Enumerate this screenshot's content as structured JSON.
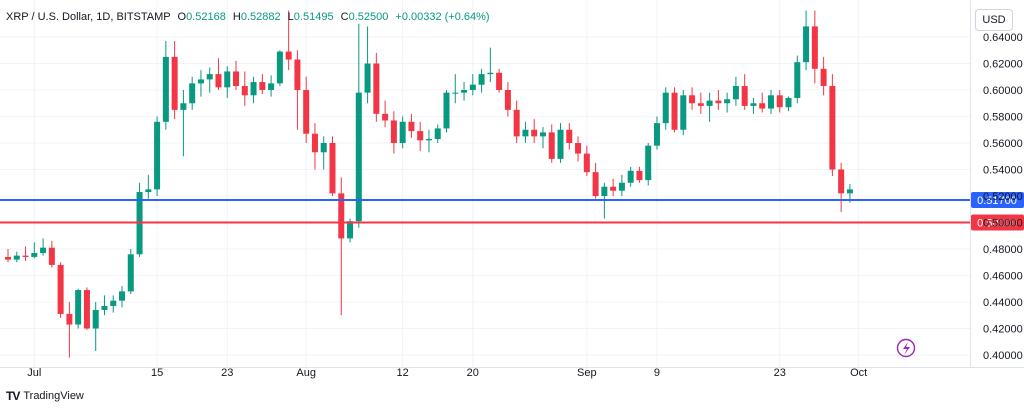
{
  "legend": {
    "symbol": "XRP / U.S. Dollar, 1D, BITSTAMP",
    "open_label": "O",
    "open": "0.52168",
    "high_label": "H",
    "high": "0.52882",
    "low_label": "L",
    "low": "0.51495",
    "close_label": "C",
    "close": "0.52500",
    "change": "+0.00332 (+0.64%)"
  },
  "currency_button": "USD",
  "footer": {
    "logo_text": "TV",
    "brand": "TradingView"
  },
  "colors": {
    "up": "#089981",
    "down": "#f23645",
    "blue_line": "#2962ff",
    "red_line": "#f23645",
    "grid": "#f0f3fa"
  },
  "chart_data": {
    "type": "candlestick",
    "x_ticks": [
      "Jul",
      "15",
      "23",
      "Aug",
      "12",
      "20",
      "Sep",
      "9",
      "23",
      "Oct"
    ],
    "y_ticks": [
      "0.40000",
      "0.42000",
      "0.44000",
      "0.46000",
      "0.48000",
      "0.50000",
      "0.52000",
      "0.54000",
      "0.56000",
      "0.58000",
      "0.60000",
      "0.62000",
      "0.64000"
    ],
    "ylim": [
      0.394,
      0.654
    ],
    "horizontal_lines": [
      {
        "value": 0.517,
        "label": "0.51700",
        "color": "#2962ff"
      },
      {
        "value": 0.5,
        "label": "0.50000",
        "color": "#f23645"
      }
    ],
    "candles": [
      {
        "date": "Jun 28",
        "o": 0.474,
        "h": 0.48,
        "l": 0.47,
        "c": 0.472
      },
      {
        "date": "Jun 29",
        "o": 0.472,
        "h": 0.478,
        "l": 0.47,
        "c": 0.475
      },
      {
        "date": "Jun 30",
        "o": 0.475,
        "h": 0.482,
        "l": 0.471,
        "c": 0.474
      },
      {
        "date": "Jul 1",
        "o": 0.474,
        "h": 0.485,
        "l": 0.473,
        "c": 0.477
      },
      {
        "date": "Jul 2",
        "o": 0.477,
        "h": 0.488,
        "l": 0.475,
        "c": 0.481
      },
      {
        "date": "Jul 3",
        "o": 0.481,
        "h": 0.486,
        "l": 0.466,
        "c": 0.468
      },
      {
        "date": "Jul 4",
        "o": 0.468,
        "h": 0.47,
        "l": 0.428,
        "c": 0.431
      },
      {
        "date": "Jul 5",
        "o": 0.431,
        "h": 0.44,
        "l": 0.398,
        "c": 0.423
      },
      {
        "date": "Jul 6",
        "o": 0.423,
        "h": 0.45,
        "l": 0.42,
        "c": 0.449
      },
      {
        "date": "Jul 7",
        "o": 0.449,
        "h": 0.451,
        "l": 0.419,
        "c": 0.42
      },
      {
        "date": "Jul 8",
        "o": 0.42,
        "h": 0.44,
        "l": 0.403,
        "c": 0.434
      },
      {
        "date": "Jul 9",
        "o": 0.434,
        "h": 0.445,
        "l": 0.43,
        "c": 0.437
      },
      {
        "date": "Jul 10",
        "o": 0.437,
        "h": 0.445,
        "l": 0.432,
        "c": 0.441
      },
      {
        "date": "Jul 11",
        "o": 0.441,
        "h": 0.452,
        "l": 0.436,
        "c": 0.448
      },
      {
        "date": "Jul 12",
        "o": 0.448,
        "h": 0.48,
        "l": 0.446,
        "c": 0.476
      },
      {
        "date": "Jul 13",
        "o": 0.476,
        "h": 0.53,
        "l": 0.474,
        "c": 0.523
      },
      {
        "date": "Jul 14",
        "o": 0.523,
        "h": 0.536,
        "l": 0.518,
        "c": 0.525
      },
      {
        "date": "Jul 15",
        "o": 0.525,
        "h": 0.58,
        "l": 0.52,
        "c": 0.576
      },
      {
        "date": "Jul 16",
        "o": 0.576,
        "h": 0.637,
        "l": 0.57,
        "c": 0.625
      },
      {
        "date": "Jul 17",
        "o": 0.625,
        "h": 0.637,
        "l": 0.578,
        "c": 0.585
      },
      {
        "date": "Jul 18",
        "o": 0.585,
        "h": 0.6,
        "l": 0.55,
        "c": 0.59
      },
      {
        "date": "Jul 19",
        "o": 0.59,
        "h": 0.61,
        "l": 0.585,
        "c": 0.605
      },
      {
        "date": "Jul 20",
        "o": 0.605,
        "h": 0.615,
        "l": 0.595,
        "c": 0.608
      },
      {
        "date": "Jul 21",
        "o": 0.608,
        "h": 0.617,
        "l": 0.598,
        "c": 0.612
      },
      {
        "date": "Jul 22",
        "o": 0.612,
        "h": 0.624,
        "l": 0.6,
        "c": 0.602
      },
      {
        "date": "Jul 23",
        "o": 0.602,
        "h": 0.618,
        "l": 0.594,
        "c": 0.614
      },
      {
        "date": "Jul 24",
        "o": 0.614,
        "h": 0.622,
        "l": 0.6,
        "c": 0.603
      },
      {
        "date": "Jul 25",
        "o": 0.603,
        "h": 0.614,
        "l": 0.588,
        "c": 0.596
      },
      {
        "date": "Jul 26",
        "o": 0.596,
        "h": 0.61,
        "l": 0.59,
        "c": 0.606
      },
      {
        "date": "Jul 27",
        "o": 0.606,
        "h": 0.612,
        "l": 0.597,
        "c": 0.6
      },
      {
        "date": "Jul 28",
        "o": 0.6,
        "h": 0.611,
        "l": 0.595,
        "c": 0.605
      },
      {
        "date": "Jul 29",
        "o": 0.605,
        "h": 0.63,
        "l": 0.603,
        "c": 0.629
      },
      {
        "date": "Jul 30",
        "o": 0.629,
        "h": 0.66,
        "l": 0.615,
        "c": 0.623
      },
      {
        "date": "Jul 31",
        "o": 0.623,
        "h": 0.63,
        "l": 0.57,
        "c": 0.6
      },
      {
        "date": "Aug 1",
        "o": 0.6,
        "h": 0.61,
        "l": 0.56,
        "c": 0.567
      },
      {
        "date": "Aug 2",
        "o": 0.567,
        "h": 0.575,
        "l": 0.54,
        "c": 0.553
      },
      {
        "date": "Aug 3",
        "o": 0.553,
        "h": 0.565,
        "l": 0.54,
        "c": 0.56
      },
      {
        "date": "Aug 4",
        "o": 0.56,
        "h": 0.565,
        "l": 0.52,
        "c": 0.522
      },
      {
        "date": "Aug 5",
        "o": 0.522,
        "h": 0.534,
        "l": 0.43,
        "c": 0.488
      },
      {
        "date": "Aug 6",
        "o": 0.488,
        "h": 0.503,
        "l": 0.485,
        "c": 0.501
      },
      {
        "date": "Aug 7",
        "o": 0.501,
        "h": 0.65,
        "l": 0.496,
        "c": 0.598
      },
      {
        "date": "Aug 8",
        "o": 0.598,
        "h": 0.648,
        "l": 0.59,
        "c": 0.62
      },
      {
        "date": "Aug 9",
        "o": 0.62,
        "h": 0.628,
        "l": 0.576,
        "c": 0.582
      },
      {
        "date": "Aug 10",
        "o": 0.582,
        "h": 0.592,
        "l": 0.572,
        "c": 0.577
      },
      {
        "date": "Aug 11",
        "o": 0.577,
        "h": 0.584,
        "l": 0.552,
        "c": 0.56
      },
      {
        "date": "Aug 12",
        "o": 0.56,
        "h": 0.58,
        "l": 0.556,
        "c": 0.576
      },
      {
        "date": "Aug 13",
        "o": 0.576,
        "h": 0.582,
        "l": 0.564,
        "c": 0.569
      },
      {
        "date": "Aug 14",
        "o": 0.569,
        "h": 0.576,
        "l": 0.554,
        "c": 0.562
      },
      {
        "date": "Aug 15",
        "o": 0.562,
        "h": 0.57,
        "l": 0.553,
        "c": 0.563
      },
      {
        "date": "Aug 16",
        "o": 0.563,
        "h": 0.574,
        "l": 0.56,
        "c": 0.571
      },
      {
        "date": "Aug 17",
        "o": 0.571,
        "h": 0.6,
        "l": 0.568,
        "c": 0.598
      },
      {
        "date": "Aug 18",
        "o": 0.598,
        "h": 0.612,
        "l": 0.59,
        "c": 0.598
      },
      {
        "date": "Aug 19",
        "o": 0.598,
        "h": 0.606,
        "l": 0.592,
        "c": 0.6
      },
      {
        "date": "Aug 20",
        "o": 0.6,
        "h": 0.612,
        "l": 0.596,
        "c": 0.604
      },
      {
        "date": "Aug 21",
        "o": 0.604,
        "h": 0.616,
        "l": 0.598,
        "c": 0.612
      },
      {
        "date": "Aug 22",
        "o": 0.612,
        "h": 0.632,
        "l": 0.606,
        "c": 0.613
      },
      {
        "date": "Aug 23",
        "o": 0.613,
        "h": 0.616,
        "l": 0.598,
        "c": 0.6
      },
      {
        "date": "Aug 24",
        "o": 0.6,
        "h": 0.606,
        "l": 0.58,
        "c": 0.585
      },
      {
        "date": "Aug 25",
        "o": 0.585,
        "h": 0.592,
        "l": 0.56,
        "c": 0.565
      },
      {
        "date": "Aug 26",
        "o": 0.565,
        "h": 0.576,
        "l": 0.56,
        "c": 0.57
      },
      {
        "date": "Aug 27",
        "o": 0.57,
        "h": 0.578,
        "l": 0.56,
        "c": 0.565
      },
      {
        "date": "Aug 28",
        "o": 0.565,
        "h": 0.572,
        "l": 0.556,
        "c": 0.568
      },
      {
        "date": "Aug 29",
        "o": 0.568,
        "h": 0.574,
        "l": 0.545,
        "c": 0.548
      },
      {
        "date": "Aug 30",
        "o": 0.548,
        "h": 0.575,
        "l": 0.545,
        "c": 0.57
      },
      {
        "date": "Aug 31",
        "o": 0.57,
        "h": 0.575,
        "l": 0.555,
        "c": 0.56
      },
      {
        "date": "Sep 1",
        "o": 0.56,
        "h": 0.565,
        "l": 0.546,
        "c": 0.552
      },
      {
        "date": "Sep 2",
        "o": 0.552,
        "h": 0.558,
        "l": 0.535,
        "c": 0.538
      },
      {
        "date": "Sep 3",
        "o": 0.538,
        "h": 0.545,
        "l": 0.518,
        "c": 0.52
      },
      {
        "date": "Sep 4",
        "o": 0.52,
        "h": 0.53,
        "l": 0.503,
        "c": 0.527
      },
      {
        "date": "Sep 5",
        "o": 0.527,
        "h": 0.533,
        "l": 0.52,
        "c": 0.524
      },
      {
        "date": "Sep 6",
        "o": 0.524,
        "h": 0.536,
        "l": 0.52,
        "c": 0.53
      },
      {
        "date": "Sep 7",
        "o": 0.53,
        "h": 0.542,
        "l": 0.527,
        "c": 0.539
      },
      {
        "date": "Sep 8",
        "o": 0.539,
        "h": 0.542,
        "l": 0.53,
        "c": 0.532
      },
      {
        "date": "Sep 9",
        "o": 0.532,
        "h": 0.56,
        "l": 0.528,
        "c": 0.558
      },
      {
        "date": "Sep 10",
        "o": 0.558,
        "h": 0.58,
        "l": 0.555,
        "c": 0.575
      },
      {
        "date": "Sep 11",
        "o": 0.575,
        "h": 0.602,
        "l": 0.57,
        "c": 0.598
      },
      {
        "date": "Sep 12",
        "o": 0.598,
        "h": 0.602,
        "l": 0.568,
        "c": 0.57
      },
      {
        "date": "Sep 13",
        "o": 0.57,
        "h": 0.6,
        "l": 0.566,
        "c": 0.596
      },
      {
        "date": "Sep 14",
        "o": 0.596,
        "h": 0.602,
        "l": 0.585,
        "c": 0.59
      },
      {
        "date": "Sep 15",
        "o": 0.59,
        "h": 0.598,
        "l": 0.582,
        "c": 0.588
      },
      {
        "date": "Sep 16",
        "o": 0.588,
        "h": 0.598,
        "l": 0.576,
        "c": 0.592
      },
      {
        "date": "Sep 17",
        "o": 0.592,
        "h": 0.6,
        "l": 0.585,
        "c": 0.59
      },
      {
        "date": "Sep 18",
        "o": 0.59,
        "h": 0.598,
        "l": 0.583,
        "c": 0.593
      },
      {
        "date": "Sep 19",
        "o": 0.593,
        "h": 0.61,
        "l": 0.588,
        "c": 0.603
      },
      {
        "date": "Sep 20",
        "o": 0.603,
        "h": 0.612,
        "l": 0.585,
        "c": 0.588
      },
      {
        "date": "Sep 21",
        "o": 0.588,
        "h": 0.594,
        "l": 0.582,
        "c": 0.59
      },
      {
        "date": "Sep 22",
        "o": 0.59,
        "h": 0.598,
        "l": 0.583,
        "c": 0.586
      },
      {
        "date": "Sep 23",
        "o": 0.586,
        "h": 0.6,
        "l": 0.582,
        "c": 0.596
      },
      {
        "date": "Sep 24",
        "o": 0.596,
        "h": 0.6,
        "l": 0.583,
        "c": 0.587
      },
      {
        "date": "Sep 25",
        "o": 0.587,
        "h": 0.595,
        "l": 0.584,
        "c": 0.594
      },
      {
        "date": "Sep 26",
        "o": 0.594,
        "h": 0.626,
        "l": 0.59,
        "c": 0.621
      },
      {
        "date": "Sep 27",
        "o": 0.621,
        "h": 0.66,
        "l": 0.615,
        "c": 0.648
      },
      {
        "date": "Sep 28",
        "o": 0.648,
        "h": 0.66,
        "l": 0.605,
        "c": 0.616
      },
      {
        "date": "Sep 29",
        "o": 0.616,
        "h": 0.625,
        "l": 0.596,
        "c": 0.603
      },
      {
        "date": "Sep 30",
        "o": 0.603,
        "h": 0.612,
        "l": 0.535,
        "c": 0.54
      },
      {
        "date": "Oct 1",
        "o": 0.54,
        "h": 0.545,
        "l": 0.508,
        "c": 0.522
      },
      {
        "date": "Oct 2",
        "o": 0.522,
        "h": 0.529,
        "l": 0.515,
        "c": 0.525
      }
    ]
  }
}
